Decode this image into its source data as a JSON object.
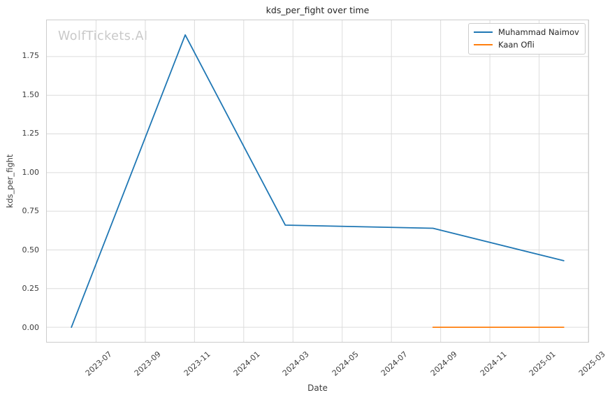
{
  "chart_data": {
    "type": "line",
    "title": "kds_per_fight over time",
    "xlabel": "Date",
    "ylabel": "kds_per_fight",
    "watermark": "WolfTickets.AI",
    "grid": true,
    "legend_position": "upper right",
    "x_ticks": [
      "2023-07",
      "2023-09",
      "2023-11",
      "2024-01",
      "2024-03",
      "2024-05",
      "2024-07",
      "2024-09",
      "2024-11",
      "2025-01",
      "2025-03"
    ],
    "y_ticks": [
      "0.00",
      "0.25",
      "0.50",
      "0.75",
      "1.00",
      "1.25",
      "1.50",
      "1.75"
    ],
    "xlim": [
      "2023-05-01",
      "2025-03-01"
    ],
    "ylim": [
      -0.0945,
      1.9845
    ],
    "series": [
      {
        "name": "Muhammad Naimov",
        "color": "#1f77b4",
        "x": [
          "2023-06-01",
          "2023-10-20",
          "2024-01-01",
          "2024-02-22",
          "2024-08-22",
          "2025-02-01"
        ],
        "y": [
          0.0,
          1.89,
          1.17,
          0.66,
          0.64,
          0.43
        ]
      },
      {
        "name": "Kaan Ofli",
        "color": "#ff7f0e",
        "x": [
          "2024-08-22",
          "2025-02-01"
        ],
        "y": [
          0.0,
          0.0
        ]
      }
    ]
  }
}
